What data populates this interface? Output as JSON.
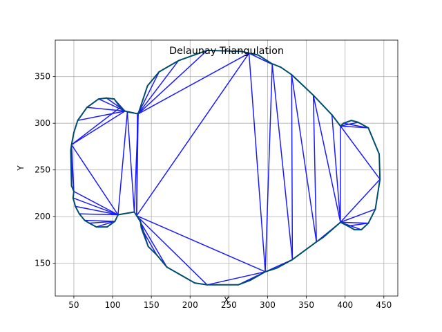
{
  "chart_data": {
    "type": "line",
    "title": "Delaunay Triangulation",
    "xlabel": "X",
    "ylabel": "Y",
    "xlim": [
      26,
      468
    ],
    "ylim": [
      115,
      389
    ],
    "x_ticks": [
      50,
      100,
      150,
      200,
      250,
      300,
      350,
      400,
      450
    ],
    "y_ticks": [
      150,
      200,
      250,
      300,
      350
    ],
    "grid": true,
    "colors": {
      "edges": "#1a1aff",
      "hull": "#004c6d",
      "grid": "#b0b0b0"
    },
    "points": [
      [
        47,
        277
      ],
      [
        46,
        271
      ],
      [
        47,
        233
      ],
      [
        50,
        227
      ],
      [
        49,
        220
      ],
      [
        52,
        211
      ],
      [
        57,
        203
      ],
      [
        64,
        196
      ],
      [
        67,
        317
      ],
      [
        55,
        303
      ],
      [
        50,
        290
      ],
      [
        70,
        193
      ],
      [
        79,
        189
      ],
      [
        82,
        326
      ],
      [
        92,
        327
      ],
      [
        93,
        189
      ],
      [
        102,
        326
      ],
      [
        107,
        202
      ],
      [
        103,
        195
      ],
      [
        110,
        317
      ],
      [
        116,
        313
      ],
      [
        119,
        312
      ],
      [
        128,
        205
      ],
      [
        132,
        311
      ],
      [
        131,
        201
      ],
      [
        136,
        195
      ],
      [
        137,
        188
      ],
      [
        146,
        168
      ],
      [
        157,
        159
      ],
      [
        170,
        146
      ],
      [
        206,
        129
      ],
      [
        222,
        127
      ],
      [
        262,
        127
      ],
      [
        278,
        132
      ],
      [
        297,
        141
      ],
      [
        312,
        145
      ],
      [
        332,
        154
      ],
      [
        363,
        173
      ],
      [
        372,
        178
      ],
      [
        394,
        194
      ],
      [
        404,
        190
      ],
      [
        412,
        186
      ],
      [
        421,
        186
      ],
      [
        430,
        193
      ],
      [
        439,
        208
      ],
      [
        445,
        240
      ],
      [
        444,
        267
      ],
      [
        430,
        295
      ],
      [
        417,
        301
      ],
      [
        408,
        303
      ],
      [
        398,
        300
      ],
      [
        394,
        297
      ],
      [
        383,
        309
      ],
      [
        359,
        330
      ],
      [
        331,
        352
      ],
      [
        317,
        360
      ],
      [
        305,
        364
      ],
      [
        288,
        373
      ],
      [
        276,
        375
      ],
      [
        266,
        377
      ],
      [
        222,
        378
      ],
      [
        185,
        367
      ],
      [
        160,
        355
      ],
      [
        155,
        350
      ],
      [
        145,
        340
      ],
      [
        133,
        310
      ],
      [
        306,
        363
      ]
    ],
    "hull": [
      [
        47,
        277
      ],
      [
        50,
        290
      ],
      [
        55,
        303
      ],
      [
        67,
        317
      ],
      [
        82,
        326
      ],
      [
        92,
        327
      ],
      [
        102,
        326
      ],
      [
        110,
        317
      ],
      [
        116,
        313
      ],
      [
        133,
        310
      ],
      [
        145,
        340
      ],
      [
        155,
        350
      ],
      [
        160,
        355
      ],
      [
        185,
        367
      ],
      [
        222,
        378
      ],
      [
        266,
        377
      ],
      [
        276,
        375
      ],
      [
        288,
        373
      ],
      [
        305,
        364
      ],
      [
        317,
        360
      ],
      [
        331,
        352
      ],
      [
        359,
        330
      ],
      [
        383,
        309
      ],
      [
        394,
        297
      ],
      [
        398,
        300
      ],
      [
        408,
        303
      ],
      [
        417,
        301
      ],
      [
        430,
        295
      ],
      [
        444,
        267
      ],
      [
        445,
        240
      ],
      [
        439,
        208
      ],
      [
        430,
        193
      ],
      [
        421,
        186
      ],
      [
        412,
        186
      ],
      [
        404,
        190
      ],
      [
        394,
        194
      ],
      [
        372,
        178
      ],
      [
        363,
        173
      ],
      [
        332,
        154
      ],
      [
        312,
        145
      ],
      [
        297,
        141
      ],
      [
        278,
        132
      ],
      [
        262,
        127
      ],
      [
        222,
        127
      ],
      [
        206,
        129
      ],
      [
        170,
        146
      ],
      [
        157,
        159
      ],
      [
        146,
        168
      ],
      [
        137,
        188
      ],
      [
        136,
        195
      ],
      [
        131,
        201
      ],
      [
        128,
        205
      ],
      [
        107,
        202
      ],
      [
        103,
        195
      ],
      [
        93,
        189
      ],
      [
        79,
        189
      ],
      [
        70,
        193
      ],
      [
        64,
        196
      ],
      [
        57,
        203
      ],
      [
        52,
        211
      ],
      [
        49,
        220
      ],
      [
        50,
        227
      ],
      [
        47,
        233
      ],
      [
        46,
        271
      ],
      [
        47,
        277
      ]
    ],
    "edges": [
      [
        [
          47,
          277
        ],
        [
          116,
          313
        ]
      ],
      [
        [
          47,
          277
        ],
        [
          110,
          317
        ]
      ],
      [
        [
          47,
          277
        ],
        [
          107,
          202
        ]
      ],
      [
        [
          47,
          277
        ],
        [
          50,
          227
        ]
      ],
      [
        [
          47,
          233
        ],
        [
          47,
          277
        ]
      ],
      [
        [
          46,
          271
        ],
        [
          50,
          227
        ]
      ],
      [
        [
          55,
          303
        ],
        [
          116,
          313
        ]
      ],
      [
        [
          67,
          317
        ],
        [
          116,
          313
        ]
      ],
      [
        [
          82,
          326
        ],
        [
          116,
          313
        ]
      ],
      [
        [
          92,
          327
        ],
        [
          116,
          313
        ]
      ],
      [
        [
          102,
          326
        ],
        [
          116,
          313
        ]
      ],
      [
        [
          50,
          227
        ],
        [
          107,
          202
        ]
      ],
      [
        [
          49,
          220
        ],
        [
          107,
          202
        ]
      ],
      [
        [
          52,
          211
        ],
        [
          107,
          202
        ]
      ],
      [
        [
          57,
          203
        ],
        [
          107,
          202
        ]
      ],
      [
        [
          64,
          196
        ],
        [
          103,
          195
        ]
      ],
      [
        [
          70,
          193
        ],
        [
          103,
          195
        ]
      ],
      [
        [
          79,
          189
        ],
        [
          103,
          195
        ]
      ],
      [
        [
          107,
          202
        ],
        [
          119,
          312
        ]
      ],
      [
        [
          119,
          312
        ],
        [
          128,
          205
        ]
      ],
      [
        [
          107,
          202
        ],
        [
          128,
          205
        ]
      ],
      [
        [
          119,
          312
        ],
        [
          133,
          310
        ]
      ],
      [
        [
          132,
          311
        ],
        [
          131,
          201
        ]
      ],
      [
        [
          131,
          201
        ],
        [
          133,
          310
        ]
      ],
      [
        [
          128,
          205
        ],
        [
          133,
          310
        ]
      ],
      [
        [
          133,
          310
        ],
        [
          160,
          355
        ]
      ],
      [
        [
          133,
          310
        ],
        [
          185,
          367
        ]
      ],
      [
        [
          133,
          310
        ],
        [
          222,
          378
        ]
      ],
      [
        [
          133,
          310
        ],
        [
          276,
          375
        ]
      ],
      [
        [
          145,
          340
        ],
        [
          155,
          350
        ]
      ],
      [
        [
          131,
          201
        ],
        [
          276,
          375
        ]
      ],
      [
        [
          131,
          201
        ],
        [
          297,
          141
        ]
      ],
      [
        [
          131,
          201
        ],
        [
          222,
          127
        ]
      ],
      [
        [
          131,
          201
        ],
        [
          170,
          146
        ]
      ],
      [
        [
          136,
          195
        ],
        [
          146,
          168
        ]
      ],
      [
        [
          137,
          188
        ],
        [
          157,
          159
        ]
      ],
      [
        [
          276,
          375
        ],
        [
          297,
          141
        ]
      ],
      [
        [
          276,
          375
        ],
        [
          306,
          363
        ]
      ],
      [
        [
          306,
          363
        ],
        [
          297,
          141
        ]
      ],
      [
        [
          306,
          363
        ],
        [
          332,
          154
        ]
      ],
      [
        [
          297,
          141
        ],
        [
          332,
          154
        ]
      ],
      [
        [
          331,
          352
        ],
        [
          332,
          154
        ]
      ],
      [
        [
          331,
          352
        ],
        [
          363,
          173
        ]
      ],
      [
        [
          331,
          352
        ],
        [
          359,
          330
        ]
      ],
      [
        [
          359,
          330
        ],
        [
          363,
          173
        ]
      ],
      [
        [
          359,
          330
        ],
        [
          394,
          194
        ]
      ],
      [
        [
          363,
          173
        ],
        [
          394,
          194
        ]
      ],
      [
        [
          383,
          309
        ],
        [
          394,
          194
        ]
      ],
      [
        [
          394,
          297
        ],
        [
          394,
          194
        ]
      ],
      [
        [
          394,
          297
        ],
        [
          445,
          240
        ]
      ],
      [
        [
          394,
          297
        ],
        [
          430,
          295
        ]
      ],
      [
        [
          394,
          297
        ],
        [
          417,
          301
        ]
      ],
      [
        [
          398,
          300
        ],
        [
          430,
          295
        ]
      ],
      [
        [
          394,
          194
        ],
        [
          445,
          240
        ]
      ],
      [
        [
          394,
          194
        ],
        [
          439,
          208
        ]
      ],
      [
        [
          394,
          194
        ],
        [
          430,
          193
        ]
      ],
      [
        [
          394,
          194
        ],
        [
          421,
          186
        ]
      ],
      [
        [
          394,
          194
        ],
        [
          412,
          186
        ]
      ],
      [
        [
          404,
          190
        ],
        [
          430,
          193
        ]
      ],
      [
        [
          297,
          141
        ],
        [
          222,
          127
        ]
      ],
      [
        [
          297,
          141
        ],
        [
          262,
          127
        ]
      ],
      [
        [
          266,
          377
        ],
        [
          276,
          375
        ]
      ]
    ]
  }
}
